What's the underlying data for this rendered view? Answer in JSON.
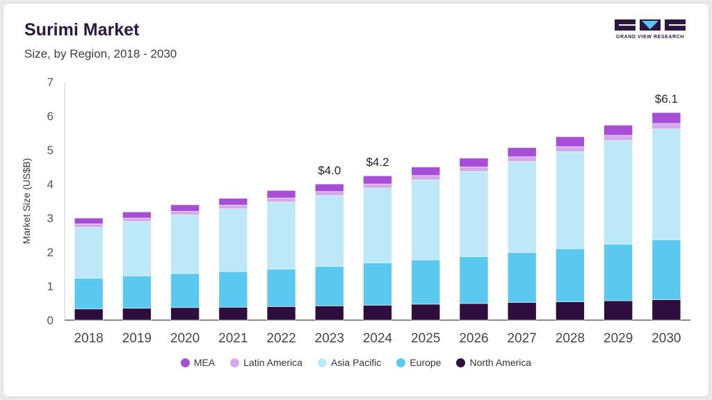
{
  "header": {
    "title": "Surimi Market",
    "subtitle": "Size, by Region, 2018 - 2030"
  },
  "logo": {
    "text": "GRAND VIEW RESEARCH"
  },
  "chart_data": {
    "type": "bar",
    "stacked": true,
    "title": "Surimi Market",
    "subtitle": "Size, by Region, 2018 - 2030",
    "xlabel": "",
    "ylabel": "Market Size (US$B)",
    "ylim": [
      0,
      7
    ],
    "yticks": [
      "0",
      "1",
      "2",
      "3",
      "4",
      "5",
      "6",
      "7"
    ],
    "categories": [
      "2018",
      "2019",
      "2020",
      "2021",
      "2022",
      "2023",
      "2024",
      "2025",
      "2026",
      "2027",
      "2028",
      "2029",
      "2030"
    ],
    "series": [
      {
        "name": "North America",
        "color": "#2d0e3e",
        "values": [
          0.33,
          0.35,
          0.37,
          0.38,
          0.4,
          0.42,
          0.44,
          0.47,
          0.49,
          0.52,
          0.54,
          0.57,
          0.6
        ]
      },
      {
        "name": "Europe",
        "color": "#5bc8f0",
        "values": [
          0.9,
          0.95,
          1.0,
          1.05,
          1.1,
          1.16,
          1.24,
          1.3,
          1.38,
          1.47,
          1.56,
          1.66,
          1.76
        ]
      },
      {
        "name": "Asia Pacific",
        "color": "#bde8f8",
        "values": [
          1.5,
          1.6,
          1.72,
          1.84,
          1.97,
          2.08,
          2.2,
          2.35,
          2.5,
          2.67,
          2.85,
          3.05,
          3.26
        ]
      },
      {
        "name": "Latin America",
        "color": "#d4a8ea",
        "values": [
          0.1,
          0.1,
          0.11,
          0.11,
          0.12,
          0.12,
          0.12,
          0.13,
          0.13,
          0.14,
          0.15,
          0.15,
          0.16
        ]
      },
      {
        "name": "MEA",
        "color": "#a64fd6",
        "values": [
          0.17,
          0.18,
          0.19,
          0.2,
          0.22,
          0.22,
          0.24,
          0.25,
          0.26,
          0.27,
          0.29,
          0.3,
          0.32
        ]
      }
    ],
    "legend_order": [
      "MEA",
      "Latin America",
      "Asia Pacific",
      "Europe",
      "North America"
    ],
    "annotations": [
      {
        "category": "2023",
        "label": "$4.0"
      },
      {
        "category": "2024",
        "label": "$4.2"
      },
      {
        "category": "2030",
        "label": "$6.1"
      }
    ],
    "grid": false,
    "legend_position": "bottom"
  }
}
